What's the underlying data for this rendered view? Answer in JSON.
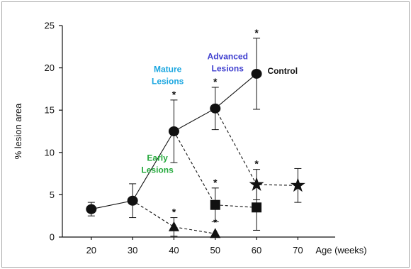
{
  "chart_data": {
    "type": "scatter",
    "xlabel": "Age (weeks)",
    "ylabel": "% lesion area",
    "xlim": [
      13,
      78
    ],
    "ylim": [
      0,
      25
    ],
    "xticks": [
      "20",
      "30",
      "40",
      "50",
      "60",
      "70"
    ],
    "yticks": [
      "0",
      "5",
      "10",
      "15",
      "20",
      "25"
    ],
    "grid": false,
    "series": [
      {
        "name": "Control",
        "marker": "circle",
        "line": "solid",
        "points": [
          {
            "x": 20,
            "y": 3.3,
            "err": 0.8,
            "sig": false
          },
          {
            "x": 30,
            "y": 4.3,
            "err": 2.0,
            "sig": false
          },
          {
            "x": 40,
            "y": 12.5,
            "err": 3.7,
            "sig": true
          },
          {
            "x": 50,
            "y": 15.2,
            "err": 2.5,
            "sig": true
          },
          {
            "x": 60,
            "y": 19.3,
            "err": 4.2,
            "sig": true
          }
        ]
      },
      {
        "name": "",
        "marker": "triangle",
        "line": "dashed",
        "points": [
          {
            "x": 30,
            "y": 4.3,
            "err": 0,
            "sig": false
          },
          {
            "x": 40,
            "y": 1.2,
            "err": 1.1,
            "sig": true
          },
          {
            "x": 50,
            "y": 0.4,
            "err": 0,
            "sig": true
          }
        ]
      },
      {
        "name": "",
        "marker": "square",
        "line": "dashed",
        "points": [
          {
            "x": 40,
            "y": 12.5,
            "err": 0,
            "sig": false
          },
          {
            "x": 50,
            "y": 3.8,
            "err": 2.0,
            "sig": true
          },
          {
            "x": 60,
            "y": 3.5,
            "err": 2.7,
            "sig": false
          }
        ]
      },
      {
        "name": "",
        "marker": "star",
        "line": "dashed",
        "points": [
          {
            "x": 50,
            "y": 15.2,
            "err": 0,
            "sig": false
          },
          {
            "x": 60,
            "y": 6.2,
            "err": 1.8,
            "sig": true
          },
          {
            "x": 70,
            "y": 6.1,
            "err": 2.0,
            "sig": false
          }
        ]
      }
    ],
    "annotations": [
      {
        "id": "early",
        "lines": [
          "Early",
          "Lesions"
        ],
        "color": "#22a83a",
        "x": 36,
        "y": 9.0
      },
      {
        "id": "mature",
        "lines": [
          "Mature",
          "Lesions"
        ],
        "color": "#1aa6e0",
        "x": 38.5,
        "y": 19.5
      },
      {
        "id": "advanced",
        "lines": [
          "Advanced",
          "Lesions"
        ],
        "color": "#3f3fcf",
        "x": 53,
        "y": 21.0
      },
      {
        "id": "control",
        "lines": [
          "Control"
        ],
        "color": "#111111",
        "x": 66.3,
        "y": 19.3
      }
    ],
    "sig_symbol": "*"
  }
}
